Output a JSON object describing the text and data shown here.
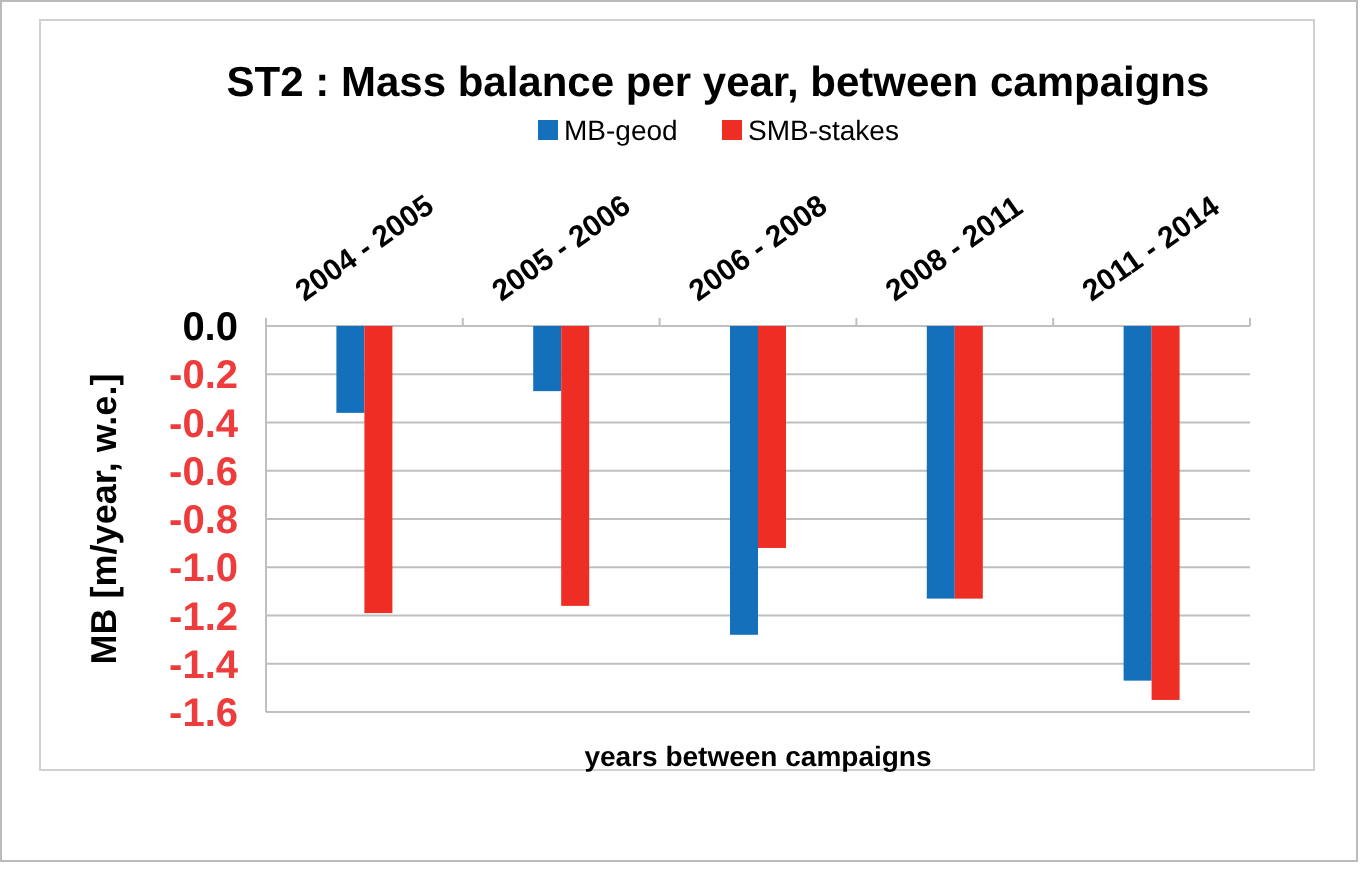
{
  "chart_data": {
    "type": "bar",
    "title": "ST2 : Mass balance per year, between campaigns",
    "xlabel": "years between campaigns",
    "ylabel": "MB  [m/year, w.e.]",
    "categories": [
      "2004 - 2005",
      "2005 - 2006",
      "2006 - 2008",
      "2008 - 2011",
      "2011 - 2014"
    ],
    "series": [
      {
        "name": "MB-geod",
        "color": "#1470ba",
        "values": [
          -0.36,
          -0.27,
          -1.28,
          -1.13,
          -1.47
        ]
      },
      {
        "name": "SMB-stakes",
        "color": "#ee2d24",
        "values": [
          -1.19,
          -1.16,
          -0.92,
          -1.13,
          -1.55
        ]
      }
    ],
    "ylim": [
      -1.6,
      0
    ],
    "yticks": [
      {
        "value": 0,
        "label": "0.0"
      },
      {
        "value": -0.2,
        "label": "-0.2"
      },
      {
        "value": -0.4,
        "label": "-0.4"
      },
      {
        "value": -0.6,
        "label": "-0.6"
      },
      {
        "value": -0.8,
        "label": "-0.8"
      },
      {
        "value": -1,
        "label": "-1.0"
      },
      {
        "value": -1.2,
        "label": "-1.2"
      },
      {
        "value": -1.4,
        "label": "-1.4"
      },
      {
        "value": -1.6,
        "label": "-1.6"
      }
    ],
    "grid": "y",
    "legend": "top"
  }
}
